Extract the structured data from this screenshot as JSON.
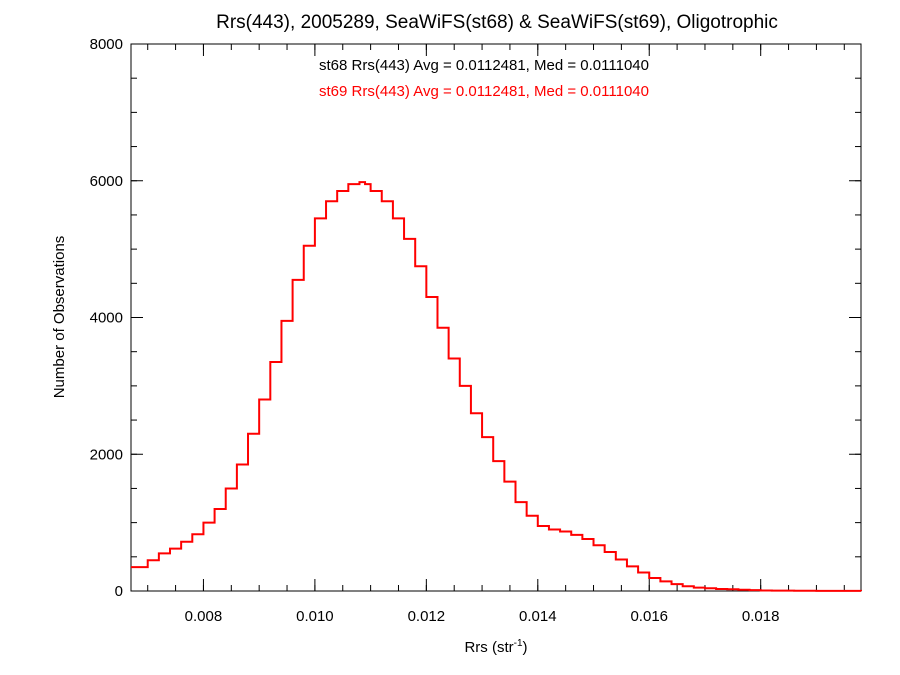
{
  "chart_data": {
    "type": "line",
    "title": "Rrs(443), 2005289, SeaWiFS(st68) & SeaWiFS(st69), Oligotrophic",
    "xlabel_main": "Rrs (str",
    "xlabel_sup": "-1",
    "xlabel_tail": ")",
    "ylabel": "Number of Observations",
    "xlim": [
      0.0067,
      0.0198
    ],
    "ylim": [
      0,
      8000
    ],
    "x_ticks": [
      0.008,
      0.01,
      0.012,
      0.014,
      0.016,
      0.018
    ],
    "x_tick_labels": [
      "0.008",
      "0.010",
      "0.012",
      "0.014",
      "0.016",
      "0.018"
    ],
    "y_ticks": [
      0,
      2000,
      4000,
      6000,
      8000
    ],
    "y_tick_labels": [
      "0",
      "2000",
      "4000",
      "6000",
      "8000"
    ],
    "x_minor_step": 0.0005,
    "y_minor_step": 500,
    "grid": false,
    "annotations": [
      {
        "text": "st68 Rrs(443) Avg = 0.0112481, Med = 0.0111040",
        "color": "#000000"
      },
      {
        "text": "st69 Rrs(443) Avg = 0.0112481, Med = 0.0111040",
        "color": "#ff0000"
      }
    ],
    "series": [
      {
        "color": "#ff0000",
        "style": "step",
        "x": [
          0.0067,
          0.007,
          0.0072,
          0.0074,
          0.0076,
          0.0078,
          0.008,
          0.0082,
          0.0084,
          0.0086,
          0.0088,
          0.009,
          0.0092,
          0.0094,
          0.0096,
          0.0098,
          0.01,
          0.0102,
          0.0104,
          0.0106,
          0.0108,
          0.0109,
          0.011,
          0.0112,
          0.0114,
          0.0116,
          0.0118,
          0.012,
          0.0122,
          0.0124,
          0.0126,
          0.0128,
          0.013,
          0.0132,
          0.0134,
          0.0136,
          0.0138,
          0.014,
          0.0142,
          0.0144,
          0.0146,
          0.0148,
          0.015,
          0.0152,
          0.0154,
          0.0156,
          0.0158,
          0.016,
          0.0162,
          0.0164,
          0.0166,
          0.0168,
          0.017,
          0.0172,
          0.0174,
          0.0176,
          0.0178,
          0.018,
          0.0182,
          0.0184,
          0.0186,
          0.0188,
          0.019,
          0.0192,
          0.0194,
          0.0196,
          0.0198
        ],
        "y": [
          350,
          450,
          550,
          620,
          720,
          830,
          1000,
          1200,
          1500,
          1850,
          2300,
          2800,
          3350,
          3950,
          4550,
          5050,
          5450,
          5700,
          5850,
          5950,
          5980,
          5950,
          5850,
          5700,
          5450,
          5150,
          4750,
          4300,
          3850,
          3400,
          3000,
          2600,
          2250,
          1900,
          1600,
          1300,
          1100,
          950,
          900,
          870,
          820,
          760,
          670,
          570,
          460,
          360,
          270,
          190,
          140,
          100,
          70,
          50,
          40,
          30,
          25,
          18,
          12,
          8,
          6,
          5,
          4,
          3,
          2,
          2,
          1,
          1,
          0
        ]
      }
    ]
  }
}
